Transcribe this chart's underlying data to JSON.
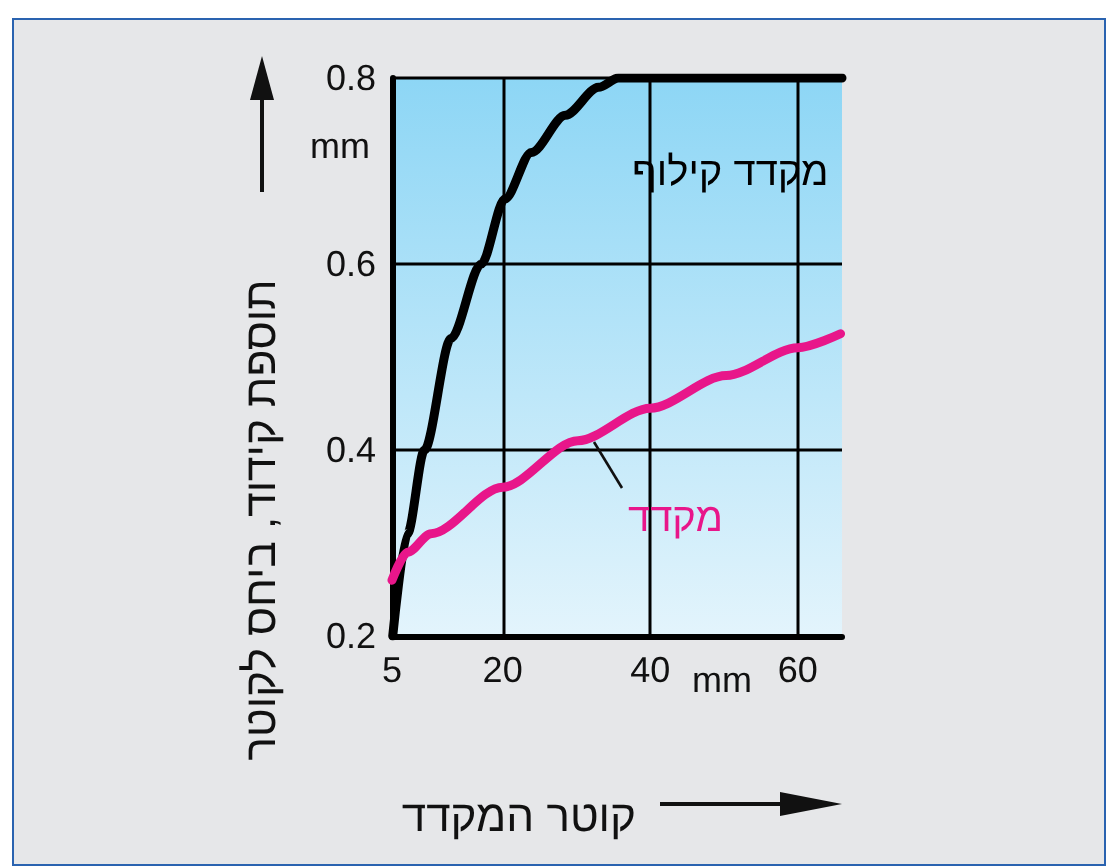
{
  "chart_data": {
    "type": "line",
    "xlabel": "קוטר המקדד",
    "ylabel": "תוספת קידוד, ביחס לקוטר",
    "annotations": [
      "mm",
      "mm"
    ],
    "xlim": [
      5,
      66
    ],
    "xticks": [
      5,
      20,
      40,
      60
    ],
    "ylim": [
      0.2,
      0.8
    ],
    "yticks": [
      0.2,
      0.4,
      0.6,
      0.8
    ],
    "grid": true,
    "legend": false,
    "marker": "none",
    "line_style": "solid",
    "series": [
      {
        "name": "מקדד קילוף",
        "color": "#000000",
        "x": [
          5.1,
          7.1,
          9.4,
          13,
          17.1,
          20.3,
          23.9,
          28.5,
          33,
          35.7,
          66
        ],
        "values": [
          0.2,
          0.31,
          0.4,
          0.52,
          0.6,
          0.67,
          0.72,
          0.76,
          0.79,
          0.8,
          0.8
        ]
      },
      {
        "name": "מקדד",
        "color": "#e8168a",
        "x": [
          5,
          7.1,
          10.3,
          20,
          30.2,
          40,
          50.3,
          60,
          65.8
        ],
        "values": [
          0.26,
          0.29,
          0.31,
          0.36,
          0.41,
          0.445,
          0.48,
          0.51,
          0.525
        ]
      }
    ]
  }
}
